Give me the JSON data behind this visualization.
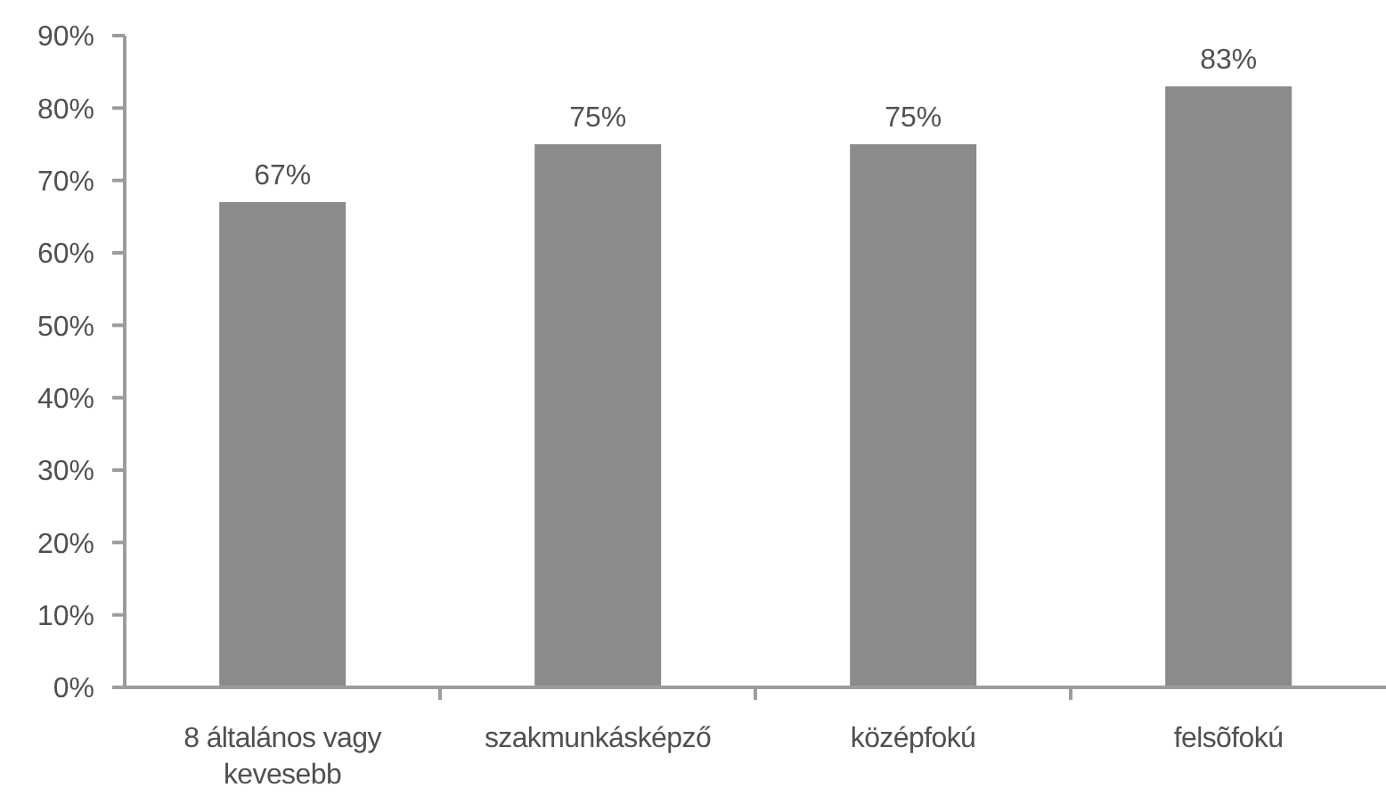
{
  "chart_data": {
    "type": "bar",
    "categories": [
      "8 általános vagy kevesebb",
      "szakmunkásképző",
      "középfokú",
      "felsõfokú"
    ],
    "values": [
      67,
      75,
      75,
      83
    ],
    "color": "#8b8b8b",
    "value_labels": [
      "67%",
      "75%",
      "75%",
      "83%"
    ],
    "ylim": [
      0,
      90
    ],
    "yticks": [
      {
        "value": 0,
        "label": "0%"
      },
      {
        "value": 10,
        "label": "10%"
      },
      {
        "value": 20,
        "label": "20%"
      },
      {
        "value": 30,
        "label": "30%"
      },
      {
        "value": 40,
        "label": "40%"
      },
      {
        "value": 50,
        "label": "50%"
      },
      {
        "value": 60,
        "label": "60%"
      },
      {
        "value": 70,
        "label": "70%"
      },
      {
        "value": 80,
        "label": "80%"
      },
      {
        "value": 90,
        "label": "90%"
      }
    ]
  }
}
